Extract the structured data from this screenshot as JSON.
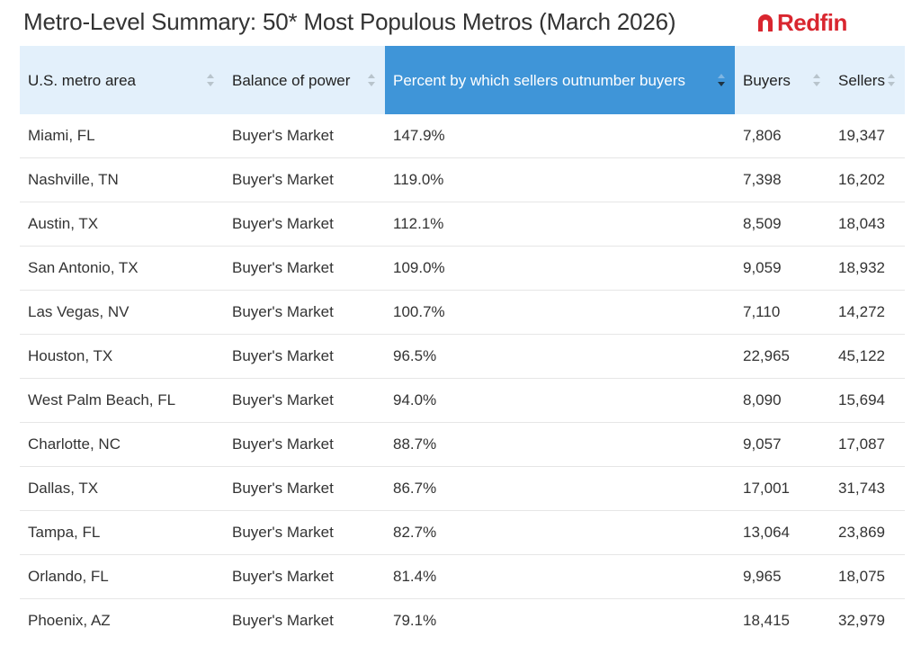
{
  "header": {
    "title": "Metro-Level Summary: 50* Most Populous Metros (March 2026)",
    "brand": "Redfin",
    "brand_color": "#d9262f"
  },
  "table": {
    "active_header_color": "#3f95d8",
    "header_color": "#e3f0fb",
    "columns": [
      {
        "label": "U.S. metro area",
        "sort_icon": "sort-both-icon"
      },
      {
        "label": "Balance of power",
        "sort_icon": "sort-both-icon"
      },
      {
        "label": "Percent by which sellers outnumber buyers",
        "sort_icon": "sort-descending-icon",
        "active": true
      },
      {
        "label": "Buyers",
        "sort_icon": "sort-both-icon"
      },
      {
        "label": "Sellers",
        "sort_icon": "sort-both-icon"
      }
    ],
    "rows": [
      [
        "Miami, FL",
        "Buyer's Market",
        "147.9%",
        "7,806",
        "19,347"
      ],
      [
        "Nashville, TN",
        "Buyer's Market",
        "119.0%",
        "7,398",
        "16,202"
      ],
      [
        "Austin, TX",
        "Buyer's Market",
        "112.1%",
        "8,509",
        "18,043"
      ],
      [
        "San Antonio, TX",
        "Buyer's Market",
        "109.0%",
        "9,059",
        "18,932"
      ],
      [
        "Las Vegas, NV",
        "Buyer's Market",
        "100.7%",
        "7,110",
        "14,272"
      ],
      [
        "Houston, TX",
        "Buyer's Market",
        "96.5%",
        "22,965",
        "45,122"
      ],
      [
        "West Palm Beach, FL",
        "Buyer's Market",
        "94.0%",
        "8,090",
        "15,694"
      ],
      [
        "Charlotte, NC",
        "Buyer's Market",
        "88.7%",
        "9,057",
        "17,087"
      ],
      [
        "Dallas, TX",
        "Buyer's Market",
        "86.7%",
        "17,001",
        "31,743"
      ],
      [
        "Tampa, FL",
        "Buyer's Market",
        "82.7%",
        "13,064",
        "23,869"
      ],
      [
        "Orlando, FL",
        "Buyer's Market",
        "81.4%",
        "9,965",
        "18,075"
      ],
      [
        "Phoenix, AZ",
        "Buyer's Market",
        "79.1%",
        "18,415",
        "32,979"
      ]
    ]
  }
}
